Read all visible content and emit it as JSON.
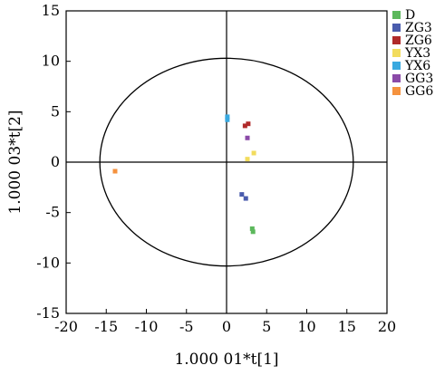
{
  "chart_data": {
    "type": "scatter",
    "title": "",
    "xlabel": "1.000 01*t[1]",
    "ylabel": "1.000 03*t[2]",
    "xlim": [
      -20,
      20
    ],
    "ylim": [
      -15,
      15
    ],
    "x_ticks": [
      "-20",
      "-15",
      "-10",
      "-5",
      "0",
      "5",
      "10",
      "15",
      "20"
    ],
    "y_ticks": [
      "15",
      "10",
      "5",
      "0",
      "-5",
      "-10",
      "-15"
    ],
    "ellipse": {
      "center": [
        0,
        0
      ],
      "rx": 15.8,
      "ry": 10.3
    },
    "legend_position": "right",
    "series": [
      {
        "name": "D",
        "color": "#5cb85c",
        "points": [
          [
            3.2,
            -6.6
          ],
          [
            3.3,
            -6.9
          ]
        ]
      },
      {
        "name": "ZG3",
        "color": "#4a5cad",
        "points": [
          [
            1.9,
            -3.2
          ],
          [
            2.4,
            -3.6
          ]
        ]
      },
      {
        "name": "ZG6",
        "color": "#b02a2a",
        "points": [
          [
            2.3,
            3.6
          ],
          [
            2.7,
            3.8
          ]
        ]
      },
      {
        "name": "YX3",
        "color": "#f2dc5d",
        "points": [
          [
            2.6,
            0.3
          ],
          [
            3.4,
            0.9
          ]
        ]
      },
      {
        "name": "YX6",
        "color": "#39a9e0",
        "points": [
          [
            0.1,
            4.2
          ],
          [
            0.1,
            4.5
          ]
        ]
      },
      {
        "name": "GG3",
        "color": "#8b4aa8",
        "points": [
          [
            2.6,
            2.4
          ]
        ]
      },
      {
        "name": "GG6",
        "color": "#f5923e",
        "points": [
          [
            -13.9,
            -0.9
          ]
        ]
      }
    ]
  }
}
